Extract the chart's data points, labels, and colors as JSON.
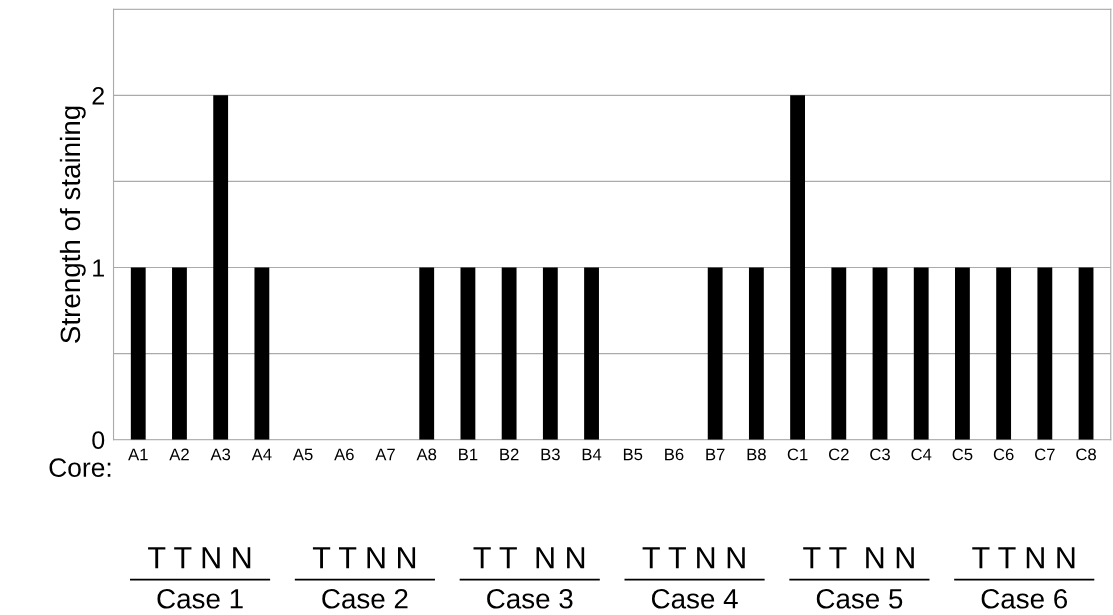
{
  "chart_data": {
    "type": "bar",
    "ylabel": "Strength of staining",
    "categories": [
      "A1",
      "A2",
      "A3",
      "A4",
      "A5",
      "A6",
      "A7",
      "A8",
      "B1",
      "B2",
      "B3",
      "B4",
      "B5",
      "B6",
      "B7",
      "B8",
      "C1",
      "C2",
      "C3",
      "C4",
      "C5",
      "C6",
      "C7",
      "C8"
    ],
    "values": [
      1,
      1,
      2,
      1,
      0,
      0,
      0,
      1,
      1,
      1,
      1,
      1,
      0,
      0,
      1,
      1,
      2,
      1,
      1,
      1,
      1,
      1,
      1,
      1
    ],
    "color": "#000000",
    "ylim": [
      0,
      2.5
    ],
    "yticks": [
      0,
      {
        "value": 0.5,
        "label": null
      },
      1,
      {
        "value": 1.5,
        "label": null
      },
      2,
      {
        "value": 2.5,
        "label": null
      }
    ],
    "grid": "y",
    "annotations": [
      "Core:",
      "T T N N",
      "T T N N",
      "T T  N N",
      "T T N N",
      "T T  N N",
      "T T N N",
      "Case 1",
      "Case 2",
      "Case 3",
      "Case 4",
      "Case 5",
      "Case 6"
    ]
  }
}
